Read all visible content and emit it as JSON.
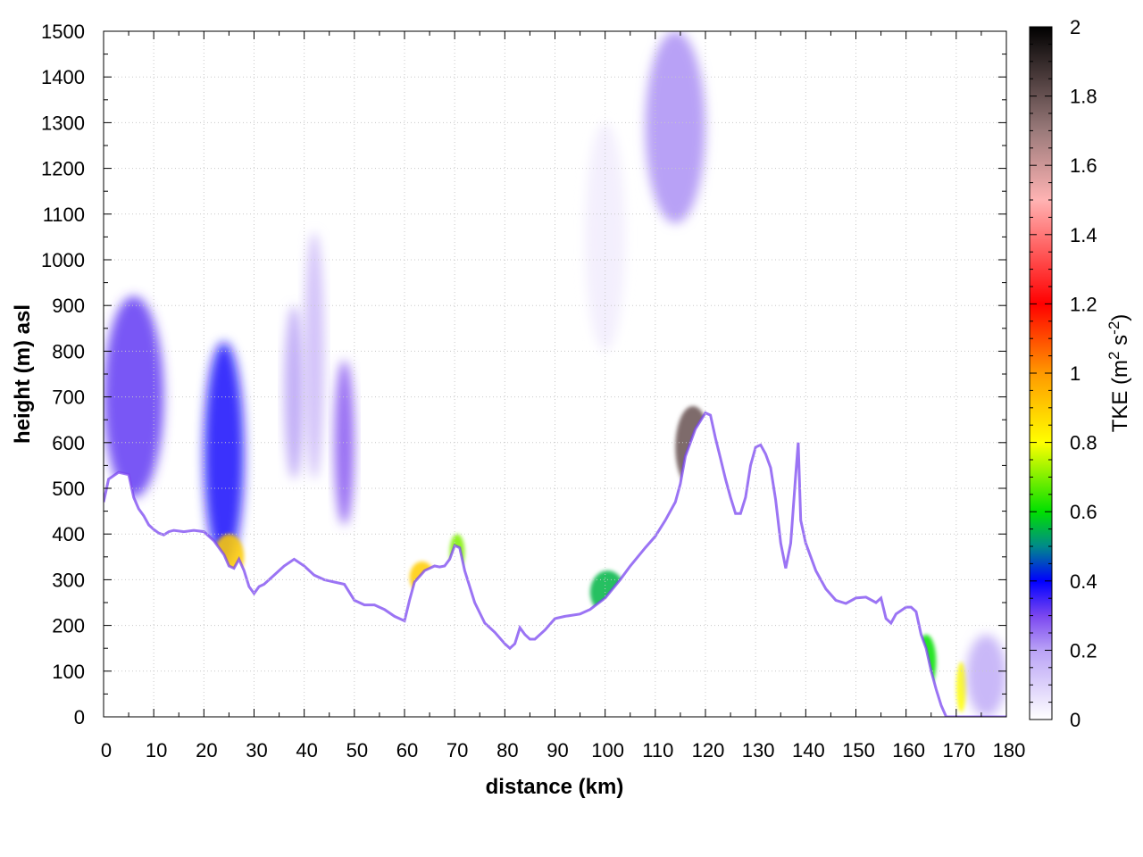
{
  "chart_data": {
    "type": "heatmap",
    "title": "",
    "xlabel": "distance (km)",
    "ylabel": "height (m) asl",
    "xlim": [
      0,
      180
    ],
    "ylim": [
      0,
      1500
    ],
    "x_ticks": [
      0,
      10,
      20,
      30,
      40,
      50,
      60,
      70,
      80,
      90,
      100,
      110,
      120,
      130,
      140,
      150,
      160,
      170,
      180
    ],
    "y_ticks": [
      0,
      100,
      200,
      300,
      400,
      500,
      600,
      700,
      800,
      900,
      1000,
      1100,
      1200,
      1300,
      1400,
      1500
    ],
    "grid": true,
    "colorbar": {
      "label_main": "TKE (m",
      "label_sup1": "2",
      "label_mid": " s",
      "label_sup2": "-2",
      "label_end": ")",
      "range": [
        0,
        2
      ],
      "ticks": [
        "0",
        "0.2",
        "0.4",
        "0.6",
        "0.8",
        "1",
        "1.2",
        "1.4",
        "1.6",
        "1.8",
        "2"
      ],
      "stops": [
        {
          "value": 0.0,
          "color": "#ffffff"
        },
        {
          "value": 0.2,
          "color": "#b9a2f6"
        },
        {
          "value": 0.3,
          "color": "#7a46f0"
        },
        {
          "value": 0.4,
          "color": "#0000ff"
        },
        {
          "value": 0.5,
          "color": "#008a8a"
        },
        {
          "value": 0.6,
          "color": "#00e000"
        },
        {
          "value": 0.8,
          "color": "#ffff00"
        },
        {
          "value": 1.0,
          "color": "#ff9900"
        },
        {
          "value": 1.2,
          "color": "#ff0000"
        },
        {
          "value": 1.5,
          "color": "#ffb3b3"
        },
        {
          "value": 1.7,
          "color": "#9a7a7a"
        },
        {
          "value": 2.0,
          "color": "#000000"
        }
      ]
    },
    "terrain_profile": [
      [
        0,
        470
      ],
      [
        1,
        520
      ],
      [
        3,
        535
      ],
      [
        5,
        530
      ],
      [
        6,
        480
      ],
      [
        7,
        455
      ],
      [
        8,
        440
      ],
      [
        9,
        420
      ],
      [
        10,
        410
      ],
      [
        11,
        402
      ],
      [
        12,
        398
      ],
      [
        13,
        405
      ],
      [
        14,
        408
      ],
      [
        16,
        405
      ],
      [
        18,
        408
      ],
      [
        20,
        405
      ],
      [
        22,
        385
      ],
      [
        24,
        355
      ],
      [
        25,
        330
      ],
      [
        26,
        325
      ],
      [
        27,
        345
      ],
      [
        28,
        320
      ],
      [
        29,
        285
      ],
      [
        30,
        270
      ],
      [
        31,
        285
      ],
      [
        32,
        290
      ],
      [
        34,
        310
      ],
      [
        36,
        330
      ],
      [
        38,
        345
      ],
      [
        40,
        330
      ],
      [
        42,
        310
      ],
      [
        44,
        300
      ],
      [
        46,
        295
      ],
      [
        48,
        290
      ],
      [
        50,
        255
      ],
      [
        52,
        245
      ],
      [
        54,
        245
      ],
      [
        56,
        235
      ],
      [
        58,
        220
      ],
      [
        60,
        210
      ],
      [
        61,
        255
      ],
      [
        62,
        295
      ],
      [
        64,
        320
      ],
      [
        66,
        330
      ],
      [
        67,
        328
      ],
      [
        68,
        330
      ],
      [
        69,
        345
      ],
      [
        70,
        375
      ],
      [
        71,
        370
      ],
      [
        72,
        320
      ],
      [
        74,
        250
      ],
      [
        76,
        205
      ],
      [
        78,
        185
      ],
      [
        80,
        160
      ],
      [
        81,
        150
      ],
      [
        82,
        160
      ],
      [
        83,
        195
      ],
      [
        84,
        180
      ],
      [
        85,
        170
      ],
      [
        86,
        170
      ],
      [
        88,
        190
      ],
      [
        90,
        215
      ],
      [
        92,
        220
      ],
      [
        95,
        225
      ],
      [
        97,
        235
      ],
      [
        100,
        260
      ],
      [
        103,
        300
      ],
      [
        105,
        330
      ],
      [
        108,
        370
      ],
      [
        110,
        395
      ],
      [
        112,
        430
      ],
      [
        114,
        470
      ],
      [
        115,
        510
      ],
      [
        116,
        570
      ],
      [
        118,
        630
      ],
      [
        120,
        665
      ],
      [
        121,
        660
      ],
      [
        122,
        610
      ],
      [
        123,
        565
      ],
      [
        124,
        520
      ],
      [
        125,
        480
      ],
      [
        126,
        445
      ],
      [
        127,
        445
      ],
      [
        128,
        480
      ],
      [
        129,
        550
      ],
      [
        130,
        590
      ],
      [
        131,
        595
      ],
      [
        132,
        575
      ],
      [
        133,
        545
      ],
      [
        134,
        475
      ],
      [
        135,
        380
      ],
      [
        136,
        325
      ],
      [
        137,
        380
      ],
      [
        138,
        530
      ],
      [
        138.5,
        600
      ],
      [
        139,
        430
      ],
      [
        140,
        380
      ],
      [
        142,
        320
      ],
      [
        144,
        280
      ],
      [
        146,
        255
      ],
      [
        148,
        248
      ],
      [
        150,
        260
      ],
      [
        152,
        262
      ],
      [
        154,
        250
      ],
      [
        155,
        260
      ],
      [
        156,
        215
      ],
      [
        157,
        205
      ],
      [
        158,
        225
      ],
      [
        160,
        240
      ],
      [
        161,
        240
      ],
      [
        162,
        230
      ],
      [
        163,
        180
      ],
      [
        164,
        150
      ],
      [
        165,
        100
      ],
      [
        166,
        60
      ],
      [
        167,
        25
      ],
      [
        168,
        0
      ],
      [
        169,
        0
      ],
      [
        170,
        0
      ],
      [
        171,
        0
      ],
      [
        172,
        0
      ],
      [
        174,
        0
      ],
      [
        176,
        0
      ],
      [
        178,
        0
      ],
      [
        180,
        0
      ]
    ],
    "turbulence_features": [
      {
        "x": [
          0,
          12
        ],
        "y": [
          480,
          920
        ],
        "peak": 0.32
      },
      {
        "x": [
          20,
          28
        ],
        "y": [
          330,
          820
        ],
        "peak": 0.38
      },
      {
        "x": [
          36,
          40
        ],
        "y": [
          520,
          900
        ],
        "peak": 0.2
      },
      {
        "x": [
          40,
          44
        ],
        "y": [
          520,
          1060
        ],
        "peak": 0.15
      },
      {
        "x": [
          46,
          50
        ],
        "y": [
          420,
          780
        ],
        "peak": 0.28
      },
      {
        "x": [
          96,
          104
        ],
        "y": [
          800,
          1300
        ],
        "peak": 0.04
      },
      {
        "x": [
          108,
          120
        ],
        "y": [
          1080,
          1500
        ],
        "peak": 0.22
      },
      {
        "x": [
          114,
          121
        ],
        "y": [
          500,
          680
        ],
        "peak": 1.8
      },
      {
        "x": [
          61,
          66
        ],
        "y": [
          270,
          340
        ],
        "peak": 0.9
      },
      {
        "x": [
          69,
          72
        ],
        "y": [
          320,
          400
        ],
        "peak": 0.7
      },
      {
        "x": [
          22,
          28
        ],
        "y": [
          300,
          400
        ],
        "peak": 0.9
      },
      {
        "x": [
          97,
          104
        ],
        "y": [
          225,
          320
        ],
        "peak": 0.55
      },
      {
        "x": [
          170,
          172
        ],
        "y": [
          10,
          120
        ],
        "peak": 0.8
      },
      {
        "x": [
          172,
          180
        ],
        "y": [
          0,
          180
        ],
        "peak": 0.18
      },
      {
        "x": [
          162,
          166
        ],
        "y": [
          60,
          180
        ],
        "peak": 0.6
      }
    ]
  }
}
